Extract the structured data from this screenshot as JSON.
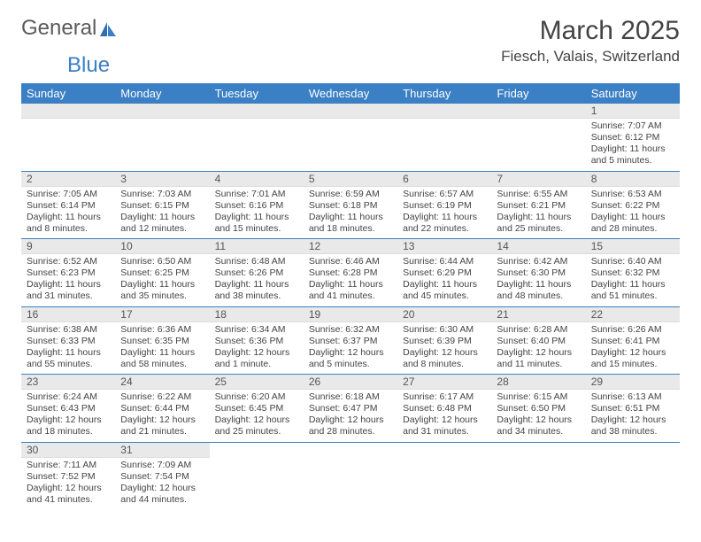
{
  "brand": {
    "part1": "General",
    "part2": "Blue"
  },
  "title": "March 2025",
  "location": "Fiesch, Valais, Switzerland",
  "weekdays": [
    "Sunday",
    "Monday",
    "Tuesday",
    "Wednesday",
    "Thursday",
    "Friday",
    "Saturday"
  ],
  "colors": {
    "header_bg": "#3b7fc4",
    "header_fg": "#ffffff",
    "daynum_bg": "#e9e9e9",
    "border": "#3b7fc4"
  },
  "cells": [
    [
      null,
      null,
      null,
      null,
      null,
      null,
      {
        "day": "1",
        "sunrise": "Sunrise: 7:07 AM",
        "sunset": "Sunset: 6:12 PM",
        "daylight": "Daylight: 11 hours and 5 minutes."
      }
    ],
    [
      {
        "day": "2",
        "sunrise": "Sunrise: 7:05 AM",
        "sunset": "Sunset: 6:14 PM",
        "daylight": "Daylight: 11 hours and 8 minutes."
      },
      {
        "day": "3",
        "sunrise": "Sunrise: 7:03 AM",
        "sunset": "Sunset: 6:15 PM",
        "daylight": "Daylight: 11 hours and 12 minutes."
      },
      {
        "day": "4",
        "sunrise": "Sunrise: 7:01 AM",
        "sunset": "Sunset: 6:16 PM",
        "daylight": "Daylight: 11 hours and 15 minutes."
      },
      {
        "day": "5",
        "sunrise": "Sunrise: 6:59 AM",
        "sunset": "Sunset: 6:18 PM",
        "daylight": "Daylight: 11 hours and 18 minutes."
      },
      {
        "day": "6",
        "sunrise": "Sunrise: 6:57 AM",
        "sunset": "Sunset: 6:19 PM",
        "daylight": "Daylight: 11 hours and 22 minutes."
      },
      {
        "day": "7",
        "sunrise": "Sunrise: 6:55 AM",
        "sunset": "Sunset: 6:21 PM",
        "daylight": "Daylight: 11 hours and 25 minutes."
      },
      {
        "day": "8",
        "sunrise": "Sunrise: 6:53 AM",
        "sunset": "Sunset: 6:22 PM",
        "daylight": "Daylight: 11 hours and 28 minutes."
      }
    ],
    [
      {
        "day": "9",
        "sunrise": "Sunrise: 6:52 AM",
        "sunset": "Sunset: 6:23 PM",
        "daylight": "Daylight: 11 hours and 31 minutes."
      },
      {
        "day": "10",
        "sunrise": "Sunrise: 6:50 AM",
        "sunset": "Sunset: 6:25 PM",
        "daylight": "Daylight: 11 hours and 35 minutes."
      },
      {
        "day": "11",
        "sunrise": "Sunrise: 6:48 AM",
        "sunset": "Sunset: 6:26 PM",
        "daylight": "Daylight: 11 hours and 38 minutes."
      },
      {
        "day": "12",
        "sunrise": "Sunrise: 6:46 AM",
        "sunset": "Sunset: 6:28 PM",
        "daylight": "Daylight: 11 hours and 41 minutes."
      },
      {
        "day": "13",
        "sunrise": "Sunrise: 6:44 AM",
        "sunset": "Sunset: 6:29 PM",
        "daylight": "Daylight: 11 hours and 45 minutes."
      },
      {
        "day": "14",
        "sunrise": "Sunrise: 6:42 AM",
        "sunset": "Sunset: 6:30 PM",
        "daylight": "Daylight: 11 hours and 48 minutes."
      },
      {
        "day": "15",
        "sunrise": "Sunrise: 6:40 AM",
        "sunset": "Sunset: 6:32 PM",
        "daylight": "Daylight: 11 hours and 51 minutes."
      }
    ],
    [
      {
        "day": "16",
        "sunrise": "Sunrise: 6:38 AM",
        "sunset": "Sunset: 6:33 PM",
        "daylight": "Daylight: 11 hours and 55 minutes."
      },
      {
        "day": "17",
        "sunrise": "Sunrise: 6:36 AM",
        "sunset": "Sunset: 6:35 PM",
        "daylight": "Daylight: 11 hours and 58 minutes."
      },
      {
        "day": "18",
        "sunrise": "Sunrise: 6:34 AM",
        "sunset": "Sunset: 6:36 PM",
        "daylight": "Daylight: 12 hours and 1 minute."
      },
      {
        "day": "19",
        "sunrise": "Sunrise: 6:32 AM",
        "sunset": "Sunset: 6:37 PM",
        "daylight": "Daylight: 12 hours and 5 minutes."
      },
      {
        "day": "20",
        "sunrise": "Sunrise: 6:30 AM",
        "sunset": "Sunset: 6:39 PM",
        "daylight": "Daylight: 12 hours and 8 minutes."
      },
      {
        "day": "21",
        "sunrise": "Sunrise: 6:28 AM",
        "sunset": "Sunset: 6:40 PM",
        "daylight": "Daylight: 12 hours and 11 minutes."
      },
      {
        "day": "22",
        "sunrise": "Sunrise: 6:26 AM",
        "sunset": "Sunset: 6:41 PM",
        "daylight": "Daylight: 12 hours and 15 minutes."
      }
    ],
    [
      {
        "day": "23",
        "sunrise": "Sunrise: 6:24 AM",
        "sunset": "Sunset: 6:43 PM",
        "daylight": "Daylight: 12 hours and 18 minutes."
      },
      {
        "day": "24",
        "sunrise": "Sunrise: 6:22 AM",
        "sunset": "Sunset: 6:44 PM",
        "daylight": "Daylight: 12 hours and 21 minutes."
      },
      {
        "day": "25",
        "sunrise": "Sunrise: 6:20 AM",
        "sunset": "Sunset: 6:45 PM",
        "daylight": "Daylight: 12 hours and 25 minutes."
      },
      {
        "day": "26",
        "sunrise": "Sunrise: 6:18 AM",
        "sunset": "Sunset: 6:47 PM",
        "daylight": "Daylight: 12 hours and 28 minutes."
      },
      {
        "day": "27",
        "sunrise": "Sunrise: 6:17 AM",
        "sunset": "Sunset: 6:48 PM",
        "daylight": "Daylight: 12 hours and 31 minutes."
      },
      {
        "day": "28",
        "sunrise": "Sunrise: 6:15 AM",
        "sunset": "Sunset: 6:50 PM",
        "daylight": "Daylight: 12 hours and 34 minutes."
      },
      {
        "day": "29",
        "sunrise": "Sunrise: 6:13 AM",
        "sunset": "Sunset: 6:51 PM",
        "daylight": "Daylight: 12 hours and 38 minutes."
      }
    ],
    [
      {
        "day": "30",
        "sunrise": "Sunrise: 7:11 AM",
        "sunset": "Sunset: 7:52 PM",
        "daylight": "Daylight: 12 hours and 41 minutes."
      },
      {
        "day": "31",
        "sunrise": "Sunrise: 7:09 AM",
        "sunset": "Sunset: 7:54 PM",
        "daylight": "Daylight: 12 hours and 44 minutes."
      },
      null,
      null,
      null,
      null,
      null
    ]
  ]
}
